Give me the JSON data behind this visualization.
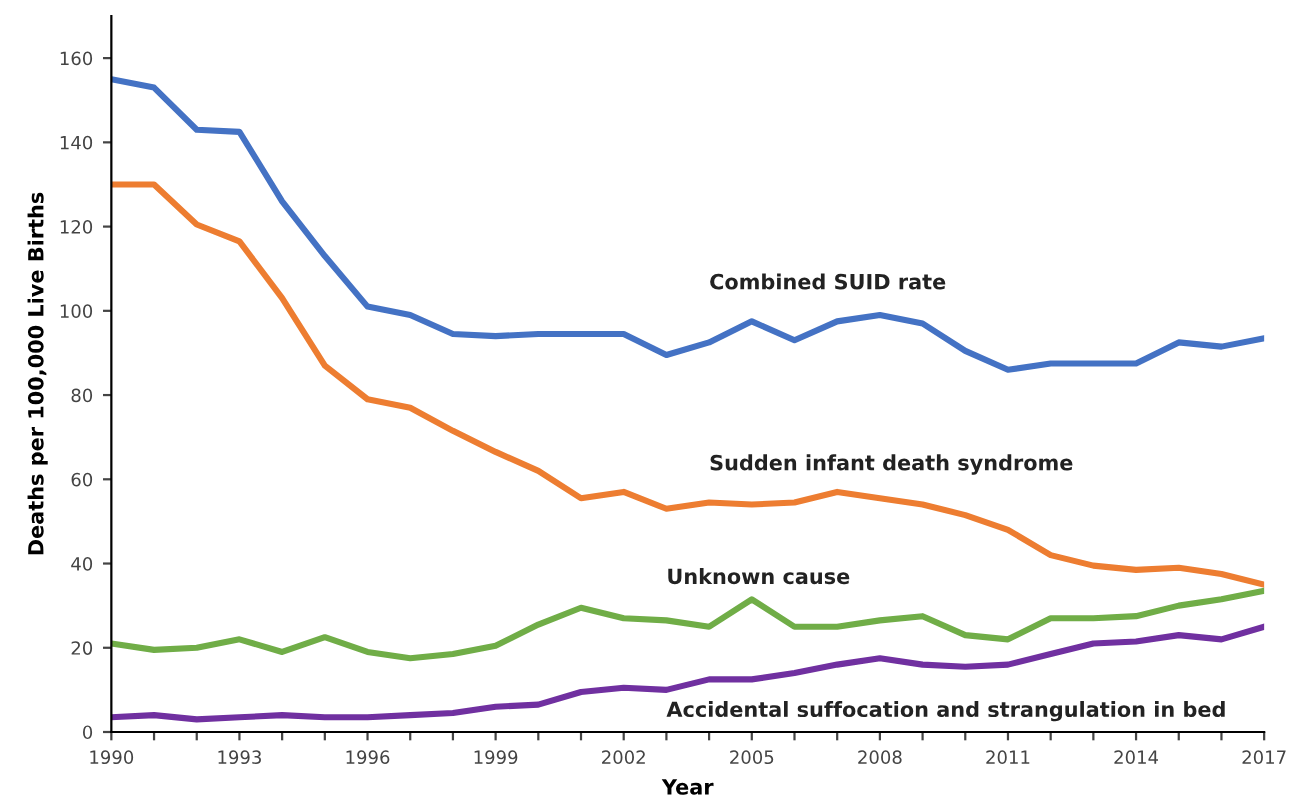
{
  "chart_data": {
    "type": "line",
    "xlabel": "Year",
    "ylabel": "Deaths per 100,000 Live Births",
    "x": [
      1990,
      1991,
      1992,
      1993,
      1994,
      1995,
      1996,
      1997,
      1998,
      1999,
      2000,
      2001,
      2002,
      2003,
      2004,
      2005,
      2006,
      2007,
      2008,
      2009,
      2010,
      2011,
      2012,
      2013,
      2014,
      2015,
      2016,
      2017
    ],
    "series": [
      {
        "name": "Combined SUID rate",
        "color": "#4472c4",
        "values": [
          155,
          153,
          143,
          142.5,
          126,
          113,
          101,
          99,
          94.5,
          94,
          94.5,
          94.5,
          94.5,
          89.5,
          92.5,
          97.5,
          93,
          97.5,
          99,
          97,
          90.5,
          86,
          87.5,
          87.5,
          87.5,
          92.5,
          91.5,
          93.5
        ]
      },
      {
        "name": "Sudden infant death syndrome",
        "color": "#ed7d31",
        "values": [
          130,
          130,
          120.5,
          116.5,
          103,
          87,
          79,
          77,
          71.5,
          66.5,
          62,
          55.5,
          57,
          53,
          54.5,
          54,
          54.5,
          57,
          55.5,
          54,
          51.5,
          48,
          42,
          39.5,
          38.5,
          39,
          37.5,
          35
        ]
      },
      {
        "name": "Unknown cause",
        "color": "#70ad47",
        "values": [
          21,
          19.5,
          20,
          22,
          19,
          22.5,
          19,
          17.5,
          18.5,
          20.5,
          25.5,
          29.5,
          27,
          26.5,
          25,
          31.5,
          25,
          25,
          26.5,
          27.5,
          23,
          22,
          27,
          27,
          27.5,
          30,
          31.5,
          33.5
        ]
      },
      {
        "name": "Accidental suffocation and strangulation in bed",
        "color": "#7030a0",
        "values": [
          3.5,
          4,
          3,
          3.5,
          4,
          3.5,
          3.5,
          4,
          4.5,
          6,
          6.5,
          9.5,
          10.5,
          10,
          12.5,
          12.5,
          14,
          16,
          17.5,
          16,
          15.5,
          16,
          18.5,
          21,
          21.5,
          23,
          22,
          25
        ]
      }
    ],
    "xlim": [
      1990,
      2017
    ],
    "ylim": [
      0,
      170
    ],
    "xticks": [
      1990,
      {
        "value": 1991,
        "label": null
      },
      {
        "value": 1992,
        "label": null
      },
      1993,
      {
        "value": 1994,
        "label": null
      },
      {
        "value": 1995,
        "label": null
      },
      1996,
      {
        "value": 1997,
        "label": null
      },
      {
        "value": 1998,
        "label": null
      },
      1999,
      {
        "value": 2000,
        "label": null
      },
      {
        "value": 2001,
        "label": null
      },
      2002,
      {
        "value": 2003,
        "label": null
      },
      {
        "value": 2004,
        "label": null
      },
      2005,
      {
        "value": 2006,
        "label": null
      },
      {
        "value": 2007,
        "label": null
      },
      2008,
      {
        "value": 2009,
        "label": null
      },
      {
        "value": 2010,
        "label": null
      },
      2011,
      {
        "value": 2012,
        "label": null
      },
      {
        "value": 2013,
        "label": null
      },
      2014,
      {
        "value": 2015,
        "label": null
      },
      {
        "value": 2016,
        "label": null
      },
      2017
    ],
    "yticks": [
      0,
      20,
      40,
      60,
      80,
      100,
      120,
      140,
      160
    ],
    "grid": false,
    "legend": false,
    "marker": "none",
    "line_style": "solid"
  }
}
